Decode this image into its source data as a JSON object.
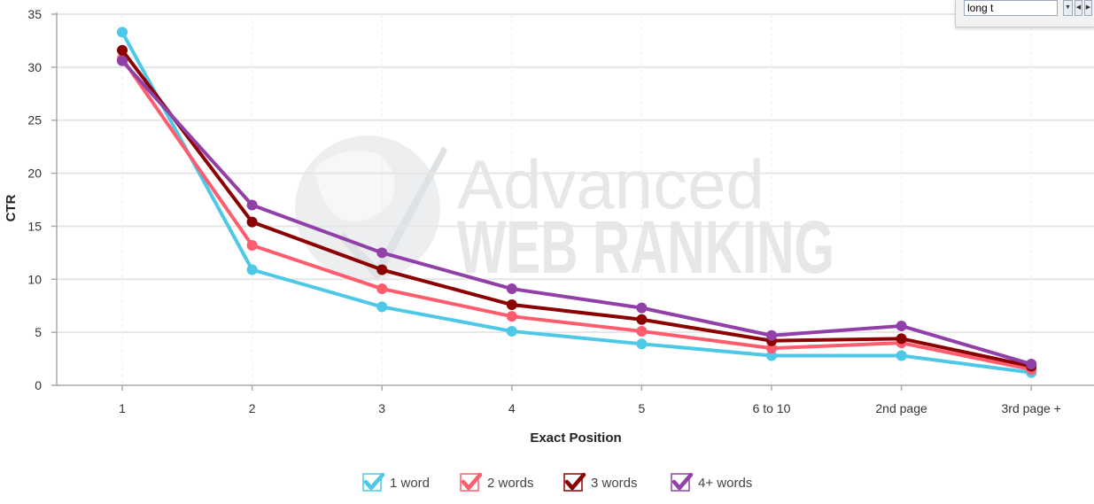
{
  "chart_data": {
    "type": "line",
    "title": "",
    "xlabel": "Exact Position",
    "ylabel": "CTR",
    "categories": [
      "1",
      "2",
      "3",
      "4",
      "5",
      "6 to 10",
      "2nd page",
      "3rd page +"
    ],
    "ylim": [
      0,
      35
    ],
    "yticks": [
      0,
      5,
      10,
      15,
      20,
      25,
      30,
      35
    ],
    "grid": true,
    "legend_position": "bottom",
    "series": [
      {
        "name": "1 word",
        "color": "#4dc8e6",
        "values": [
          33.3,
          10.9,
          7.4,
          5.1,
          3.9,
          2.8,
          2.8,
          1.2
        ]
      },
      {
        "name": "2 words",
        "color": "#ff5c6e",
        "values": [
          30.8,
          13.2,
          9.1,
          6.5,
          5.1,
          3.5,
          4.0,
          1.5
        ]
      },
      {
        "name": "3 words",
        "color": "#8b0000",
        "values": [
          31.6,
          15.4,
          10.9,
          7.6,
          6.2,
          4.2,
          4.4,
          1.8
        ]
      },
      {
        "name": "4+ words",
        "color": "#9140a8",
        "values": [
          30.6,
          17.0,
          12.5,
          9.1,
          7.3,
          4.7,
          5.6,
          2.0
        ]
      }
    ]
  },
  "watermark": {
    "line1": "Advanced",
    "line2": "WEB RANKING",
    "icon": "globe-checkmark-icon"
  },
  "widget": {
    "input_value": "long t",
    "dropdown_icon": "chevron-down-icon",
    "prev_icon": "arrow-left-icon",
    "next_icon": "arrow-right-icon"
  }
}
